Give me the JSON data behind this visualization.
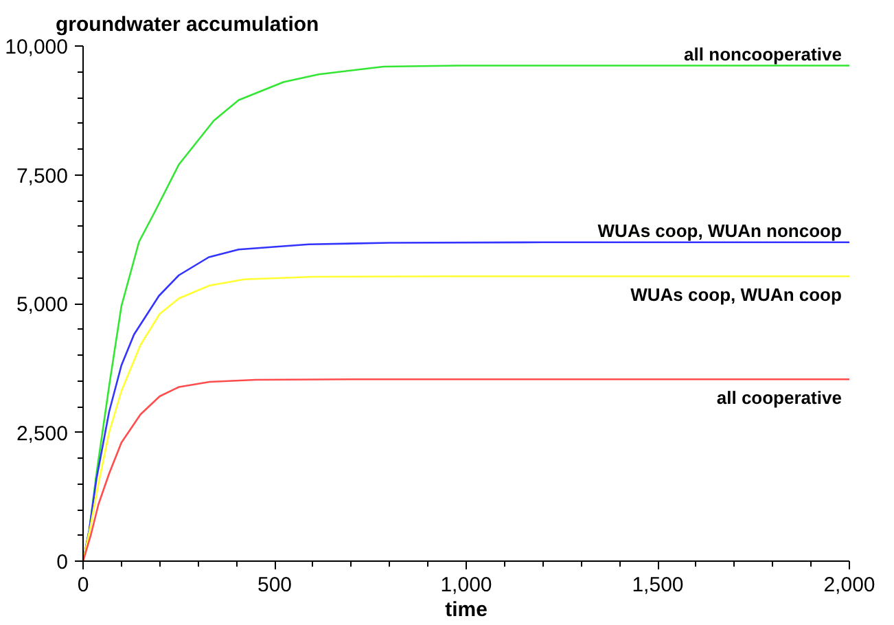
{
  "chart_data": {
    "type": "line",
    "xlabel": "time",
    "ylabel": "groundwater accumulation",
    "xlim": [
      0,
      2000
    ],
    "ylim": [
      0,
      10000
    ],
    "xticks": [
      0,
      500,
      {
        "value": 1000,
        "label": "1,000"
      },
      {
        "value": 1500,
        "label": "1,500"
      },
      {
        "value": 2000,
        "label": "2,000"
      }
    ],
    "yticks": [
      0,
      {
        "value": 2500,
        "label": "2,500"
      },
      {
        "value": 5000,
        "label": "5,000"
      },
      {
        "value": 7500,
        "label": "7,500"
      },
      {
        "value": 10000,
        "label": "10,000"
      }
    ],
    "grid": false,
    "legend": false,
    "marker": "none",
    "line_style": "solid",
    "series": [
      {
        "name": "all noncooperative",
        "color": "#33e633",
        "x": [
          0,
          16,
          35,
          68,
          100,
          146,
          185,
          250,
          341,
          406,
          523,
          615,
          784,
          979,
          1200,
          1500,
          2000
        ],
        "values": [
          0,
          600,
          1700,
          3400,
          4950,
          6200,
          6750,
          7700,
          8550,
          8950,
          9300,
          9450,
          9600,
          9620,
          9620,
          9620,
          9620
        ]
      },
      {
        "name": "WUAs coop, WUAn noncoop",
        "color": "#3333ff",
        "x": [
          0,
          16,
          35,
          68,
          100,
          133,
          198,
          250,
          328,
          406,
          589,
          800,
          1200,
          2000
        ],
        "values": [
          0,
          600,
          1600,
          2900,
          3800,
          4400,
          5150,
          5550,
          5900,
          6050,
          6150,
          6180,
          6190,
          6190
        ]
      },
      {
        "name": "WUAs coop, WUAn coop",
        "color": "#ffff33",
        "x": [
          0,
          20,
          40,
          68,
          100,
          150,
          200,
          250,
          330,
          420,
          600,
          1000,
          2000
        ],
        "values": [
          0,
          700,
          1500,
          2500,
          3300,
          4200,
          4800,
          5100,
          5350,
          5470,
          5520,
          5530,
          5530
        ]
      },
      {
        "name": "all cooperative",
        "color": "#ff4d4d",
        "x": [
          0,
          20,
          40,
          68,
          100,
          150,
          200,
          250,
          330,
          450,
          700,
          2000
        ],
        "values": [
          0,
          500,
          1100,
          1700,
          2300,
          2850,
          3200,
          3380,
          3480,
          3520,
          3530,
          3530
        ]
      }
    ]
  }
}
